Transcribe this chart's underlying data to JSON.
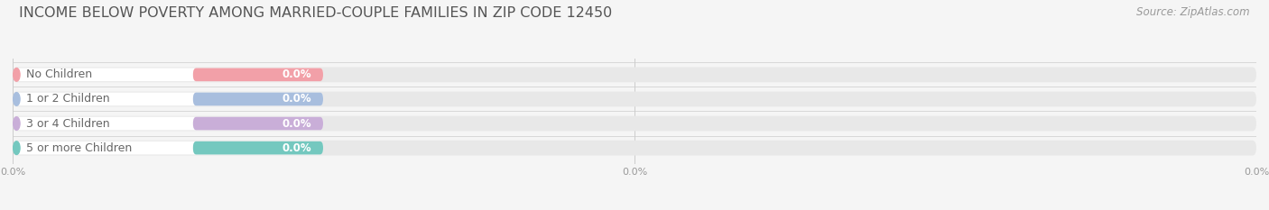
{
  "title": "INCOME BELOW POVERTY AMONG MARRIED-COUPLE FAMILIES IN ZIP CODE 12450",
  "source": "Source: ZipAtlas.com",
  "categories": [
    "No Children",
    "1 or 2 Children",
    "3 or 4 Children",
    "5 or more Children"
  ],
  "values": [
    0.0,
    0.0,
    0.0,
    0.0
  ],
  "bar_colors": [
    "#f2a0a8",
    "#a8bede",
    "#c9aed8",
    "#74c8bf"
  ],
  "bar_bg_color": "#e8e8e8",
  "bar_white_color": "#ffffff",
  "background_color": "#f5f5f5",
  "title_fontsize": 11.5,
  "label_fontsize": 9,
  "value_fontsize": 8.5,
  "source_fontsize": 8.5,
  "tick_label": "0.0%",
  "label_color": "#666666",
  "value_color": "#ffffff"
}
